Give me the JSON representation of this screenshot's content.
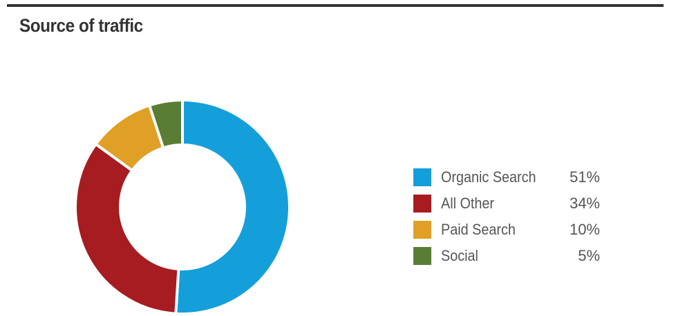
{
  "chart_data": {
    "type": "pie",
    "title": "Source of traffic",
    "donut": true,
    "legend_position": "right",
    "slices": [
      {
        "label": "Organic Search",
        "value": 51,
        "value_label": "51%",
        "color": "#159fda"
      },
      {
        "label": "All Other",
        "value": 34,
        "value_label": "34%",
        "color": "#a61c21"
      },
      {
        "label": "Paid Search",
        "value": 10,
        "value_label": "10%",
        "color": "#dfa025"
      },
      {
        "label": "Social",
        "value": 5,
        "value_label": "5%",
        "color": "#5a7d35"
      }
    ]
  }
}
